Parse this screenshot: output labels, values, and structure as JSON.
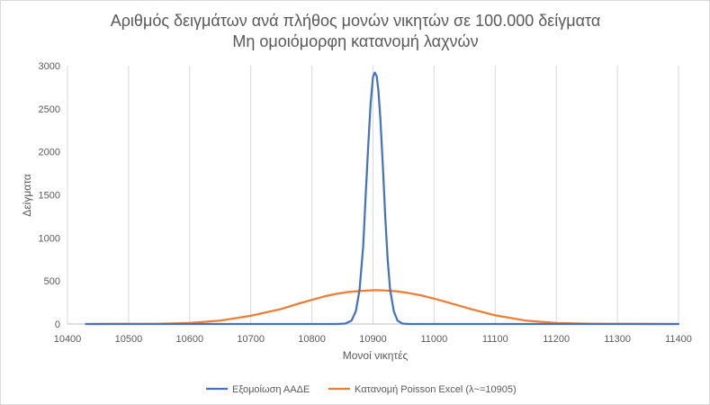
{
  "chart_data": {
    "type": "line",
    "title": "Αριθμός δειγμάτων ανά πλήθος μονών νικητών σε 100.000 δείγματα",
    "subtitle": "Μη ομοιόμορφη κατανομή λαχνών",
    "xlabel": "Μονοί νικητές",
    "ylabel": "Δείγματα",
    "xlim": [
      10400,
      11400
    ],
    "ylim": [
      0,
      3000
    ],
    "xticks": [
      10400,
      10500,
      10600,
      10700,
      10800,
      10900,
      11000,
      11100,
      11200,
      11300,
      11400
    ],
    "yticks": [
      0,
      500,
      1000,
      1500,
      2000,
      2500,
      3000
    ],
    "grid": "vertical",
    "legend_position": "bottom",
    "series": [
      {
        "name": "Εξομοίωση ΑΑΔΕ",
        "color": "#4472C4",
        "x": [
          10430,
          10840,
          10855,
          10865,
          10872,
          10878,
          10884,
          10888,
          10892,
          10896,
          10900,
          10903,
          10906,
          10909,
          10912,
          10916,
          10920,
          10924,
          10928,
          10934,
          10940,
          10948,
          10958,
          11400
        ],
        "y": [
          0,
          0,
          5,
          40,
          150,
          400,
          900,
          1500,
          2050,
          2550,
          2870,
          2920,
          2880,
          2700,
          2400,
          1850,
          1250,
          750,
          400,
          150,
          40,
          5,
          0,
          0
        ]
      },
      {
        "name": "Κατανομή Poisson Excel (λ~=10905)",
        "color": "#ED7D31",
        "x": [
          10435,
          10550,
          10600,
          10650,
          10700,
          10750,
          10780,
          10800,
          10820,
          10840,
          10860,
          10880,
          10900,
          10905,
          10920,
          10940,
          10960,
          10980,
          11000,
          11020,
          11040,
          11060,
          11100,
          11150,
          11200,
          11260,
          11395
        ],
        "y": [
          0,
          2,
          12,
          40,
          95,
          175,
          240,
          280,
          320,
          350,
          372,
          385,
          392,
          393,
          390,
          378,
          358,
          330,
          295,
          255,
          215,
          175,
          100,
          40,
          12,
          2,
          0
        ]
      }
    ]
  }
}
